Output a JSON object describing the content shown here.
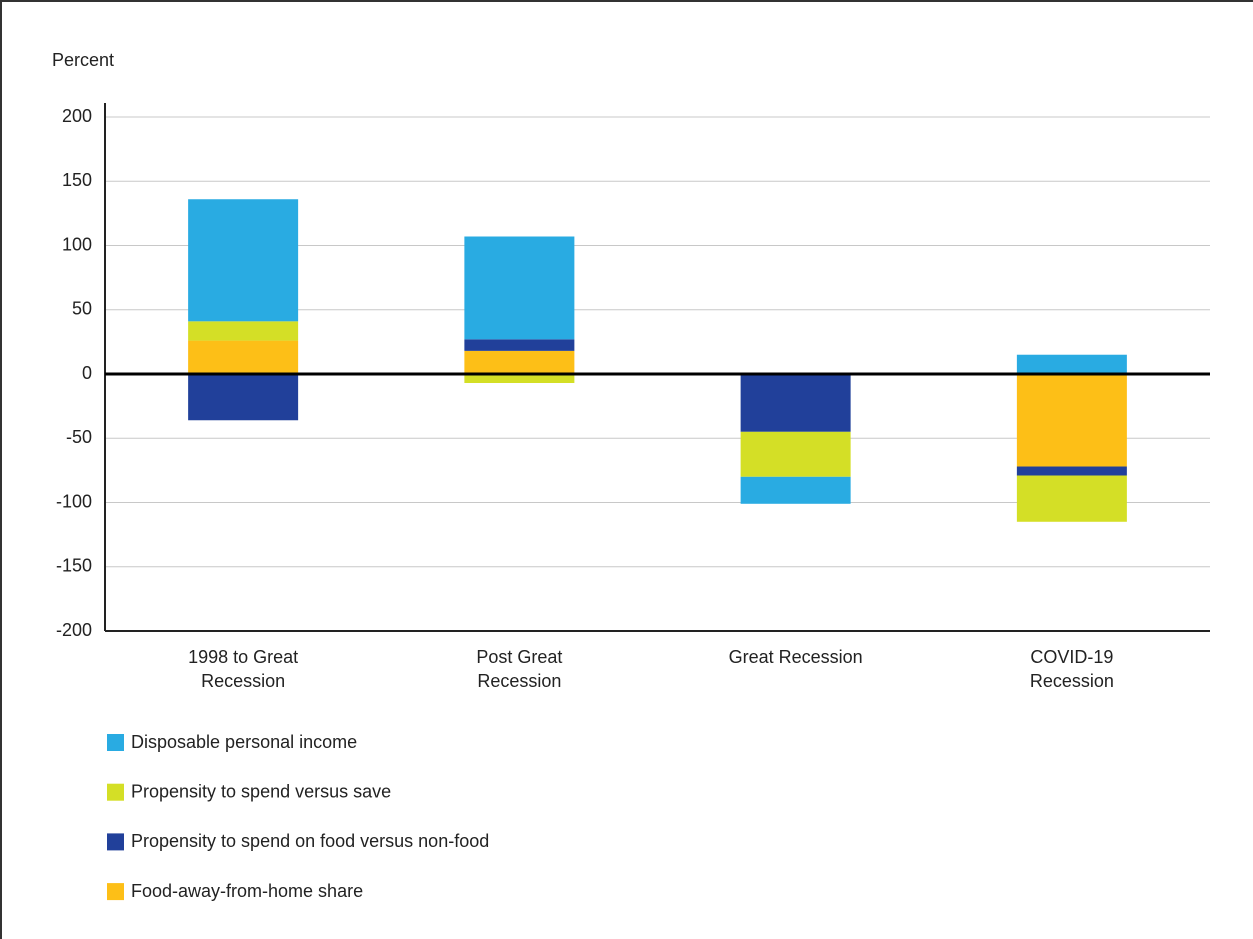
{
  "chart_data": {
    "type": "bar",
    "stacked": true,
    "y_label": "Percent",
    "categories": [
      "1998 to Great Recession",
      "Post Great Recession",
      "Great Recession",
      "COVID-19 Recession"
    ],
    "series": [
      {
        "name": "Disposable personal income",
        "color": "#29abe2",
        "values": [
          95,
          80,
          -21,
          15
        ]
      },
      {
        "name": "Propensity to spend versus save",
        "color": "#d4df26",
        "values": [
          15,
          -7,
          -35,
          -36
        ]
      },
      {
        "name": "Propensity to spend on food versus non-food",
        "color": "#21409a",
        "values": [
          -36,
          9,
          -45,
          -7
        ]
      },
      {
        "name": "Food-away-from-home share",
        "color": "#fdbf17",
        "values": [
          26,
          18,
          null,
          -72
        ]
      }
    ],
    "ylim": [
      -200,
      200
    ],
    "yticks": [
      -200,
      -150,
      -100,
      -50,
      0,
      50,
      100,
      150,
      200
    ],
    "grid": true
  }
}
